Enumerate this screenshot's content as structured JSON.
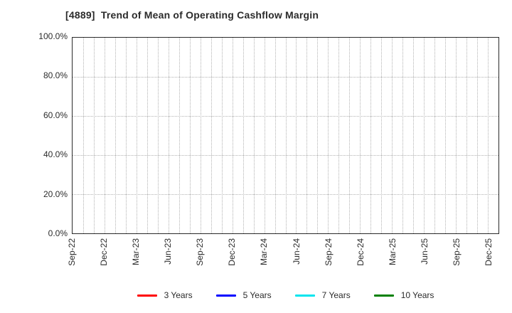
{
  "chart_data": {
    "type": "line",
    "title": "[4889]  Trend of Mean of Operating Cashflow Margin",
    "x_categories": [
      "Sep-22",
      "Dec-22",
      "Mar-23",
      "Jun-23",
      "Sep-23",
      "Dec-23",
      "Mar-24",
      "Jun-24",
      "Sep-24",
      "Dec-24",
      "Mar-25",
      "Jun-25",
      "Sep-25",
      "Dec-25"
    ],
    "x_minor_gridlines_per_label": 3,
    "x_right_padding_intervals": 1,
    "ylim": [
      0,
      100
    ],
    "ytick_labels": [
      "100.0%",
      "80.0%",
      "60.0%",
      "40.0%",
      "20.0%",
      "0.0%"
    ],
    "grid_y_values": [
      20,
      40,
      60,
      80
    ],
    "grid": true,
    "legend_position": "bottom",
    "series": [
      {
        "name": "3 Years",
        "color": "#ff0000",
        "values": []
      },
      {
        "name": "5 Years",
        "color": "#0000ff",
        "values": []
      },
      {
        "name": "7 Years",
        "color": "#00e5ee",
        "values": []
      },
      {
        "name": "10 Years",
        "color": "#008000",
        "values": []
      }
    ],
    "plot_content": "empty - no data lines visible",
    "colors": {
      "axis": "#2a2a2a",
      "gridline": "#b2b2b2",
      "text": "#2b2b2b",
      "background": "#ffffff"
    }
  }
}
